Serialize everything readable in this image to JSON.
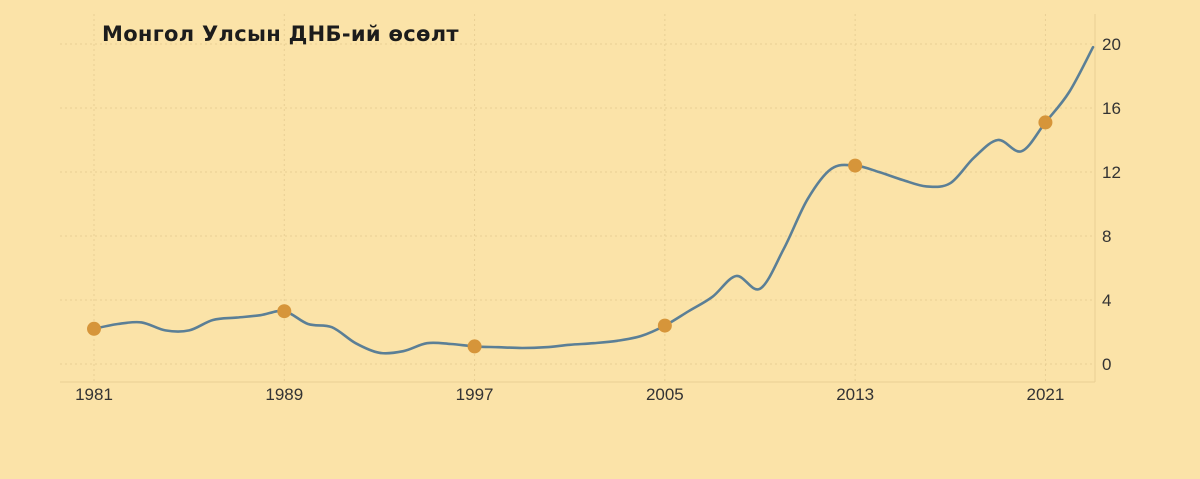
{
  "title": "Монгол Улсын ДНБ-ий өсөлт",
  "colors": {
    "background": "#fbe3a8",
    "line": "#5b7f96",
    "marker": "#d6953a",
    "grid": "#e8cf94",
    "text": "#333333"
  },
  "chart_data": {
    "type": "line",
    "title": "Монгол Улсын ДНБ-ий өсөлт",
    "xlabel": "",
    "ylabel": "",
    "x_tick_labels": [
      "1981",
      "1989",
      "1997",
      "2005",
      "2013",
      "2021"
    ],
    "y_tick_labels": [
      "0",
      "4",
      "8",
      "12",
      "16",
      "20"
    ],
    "ylim": [
      0,
      20
    ],
    "xlim": [
      1981,
      2023
    ],
    "y_axis_position": "right",
    "grid": true,
    "legend": null,
    "x": [
      1981,
      1982,
      1983,
      1984,
      1985,
      1986,
      1987,
      1988,
      1989,
      1990,
      1991,
      1992,
      1993,
      1994,
      1995,
      1996,
      1997,
      1998,
      1999,
      2000,
      2001,
      2002,
      2003,
      2004,
      2005,
      2006,
      2007,
      2008,
      2009,
      2010,
      2011,
      2012,
      2013,
      2014,
      2015,
      2016,
      2017,
      2018,
      2019,
      2020,
      2021,
      2022,
      2023
    ],
    "series": [
      {
        "name": "ДНБ",
        "values": [
          2.2,
          2.5,
          2.6,
          2.1,
          2.1,
          2.75,
          2.9,
          3.05,
          3.3,
          2.5,
          2.3,
          1.3,
          0.7,
          0.8,
          1.3,
          1.25,
          1.1,
          1.05,
          1.0,
          1.05,
          1.2,
          1.3,
          1.45,
          1.75,
          2.4,
          3.3,
          4.2,
          5.5,
          4.7,
          7.2,
          10.3,
          12.2,
          12.4,
          12.0,
          11.5,
          11.1,
          11.3,
          12.9,
          14.0,
          13.3,
          15.1,
          17.0,
          19.8
        ]
      }
    ],
    "highlighted_points": [
      {
        "x": 1981,
        "y": 2.2
      },
      {
        "x": 1989,
        "y": 3.3
      },
      {
        "x": 1997,
        "y": 1.1
      },
      {
        "x": 2005,
        "y": 2.4
      },
      {
        "x": 2013,
        "y": 12.4
      },
      {
        "x": 2021,
        "y": 15.1
      }
    ]
  }
}
